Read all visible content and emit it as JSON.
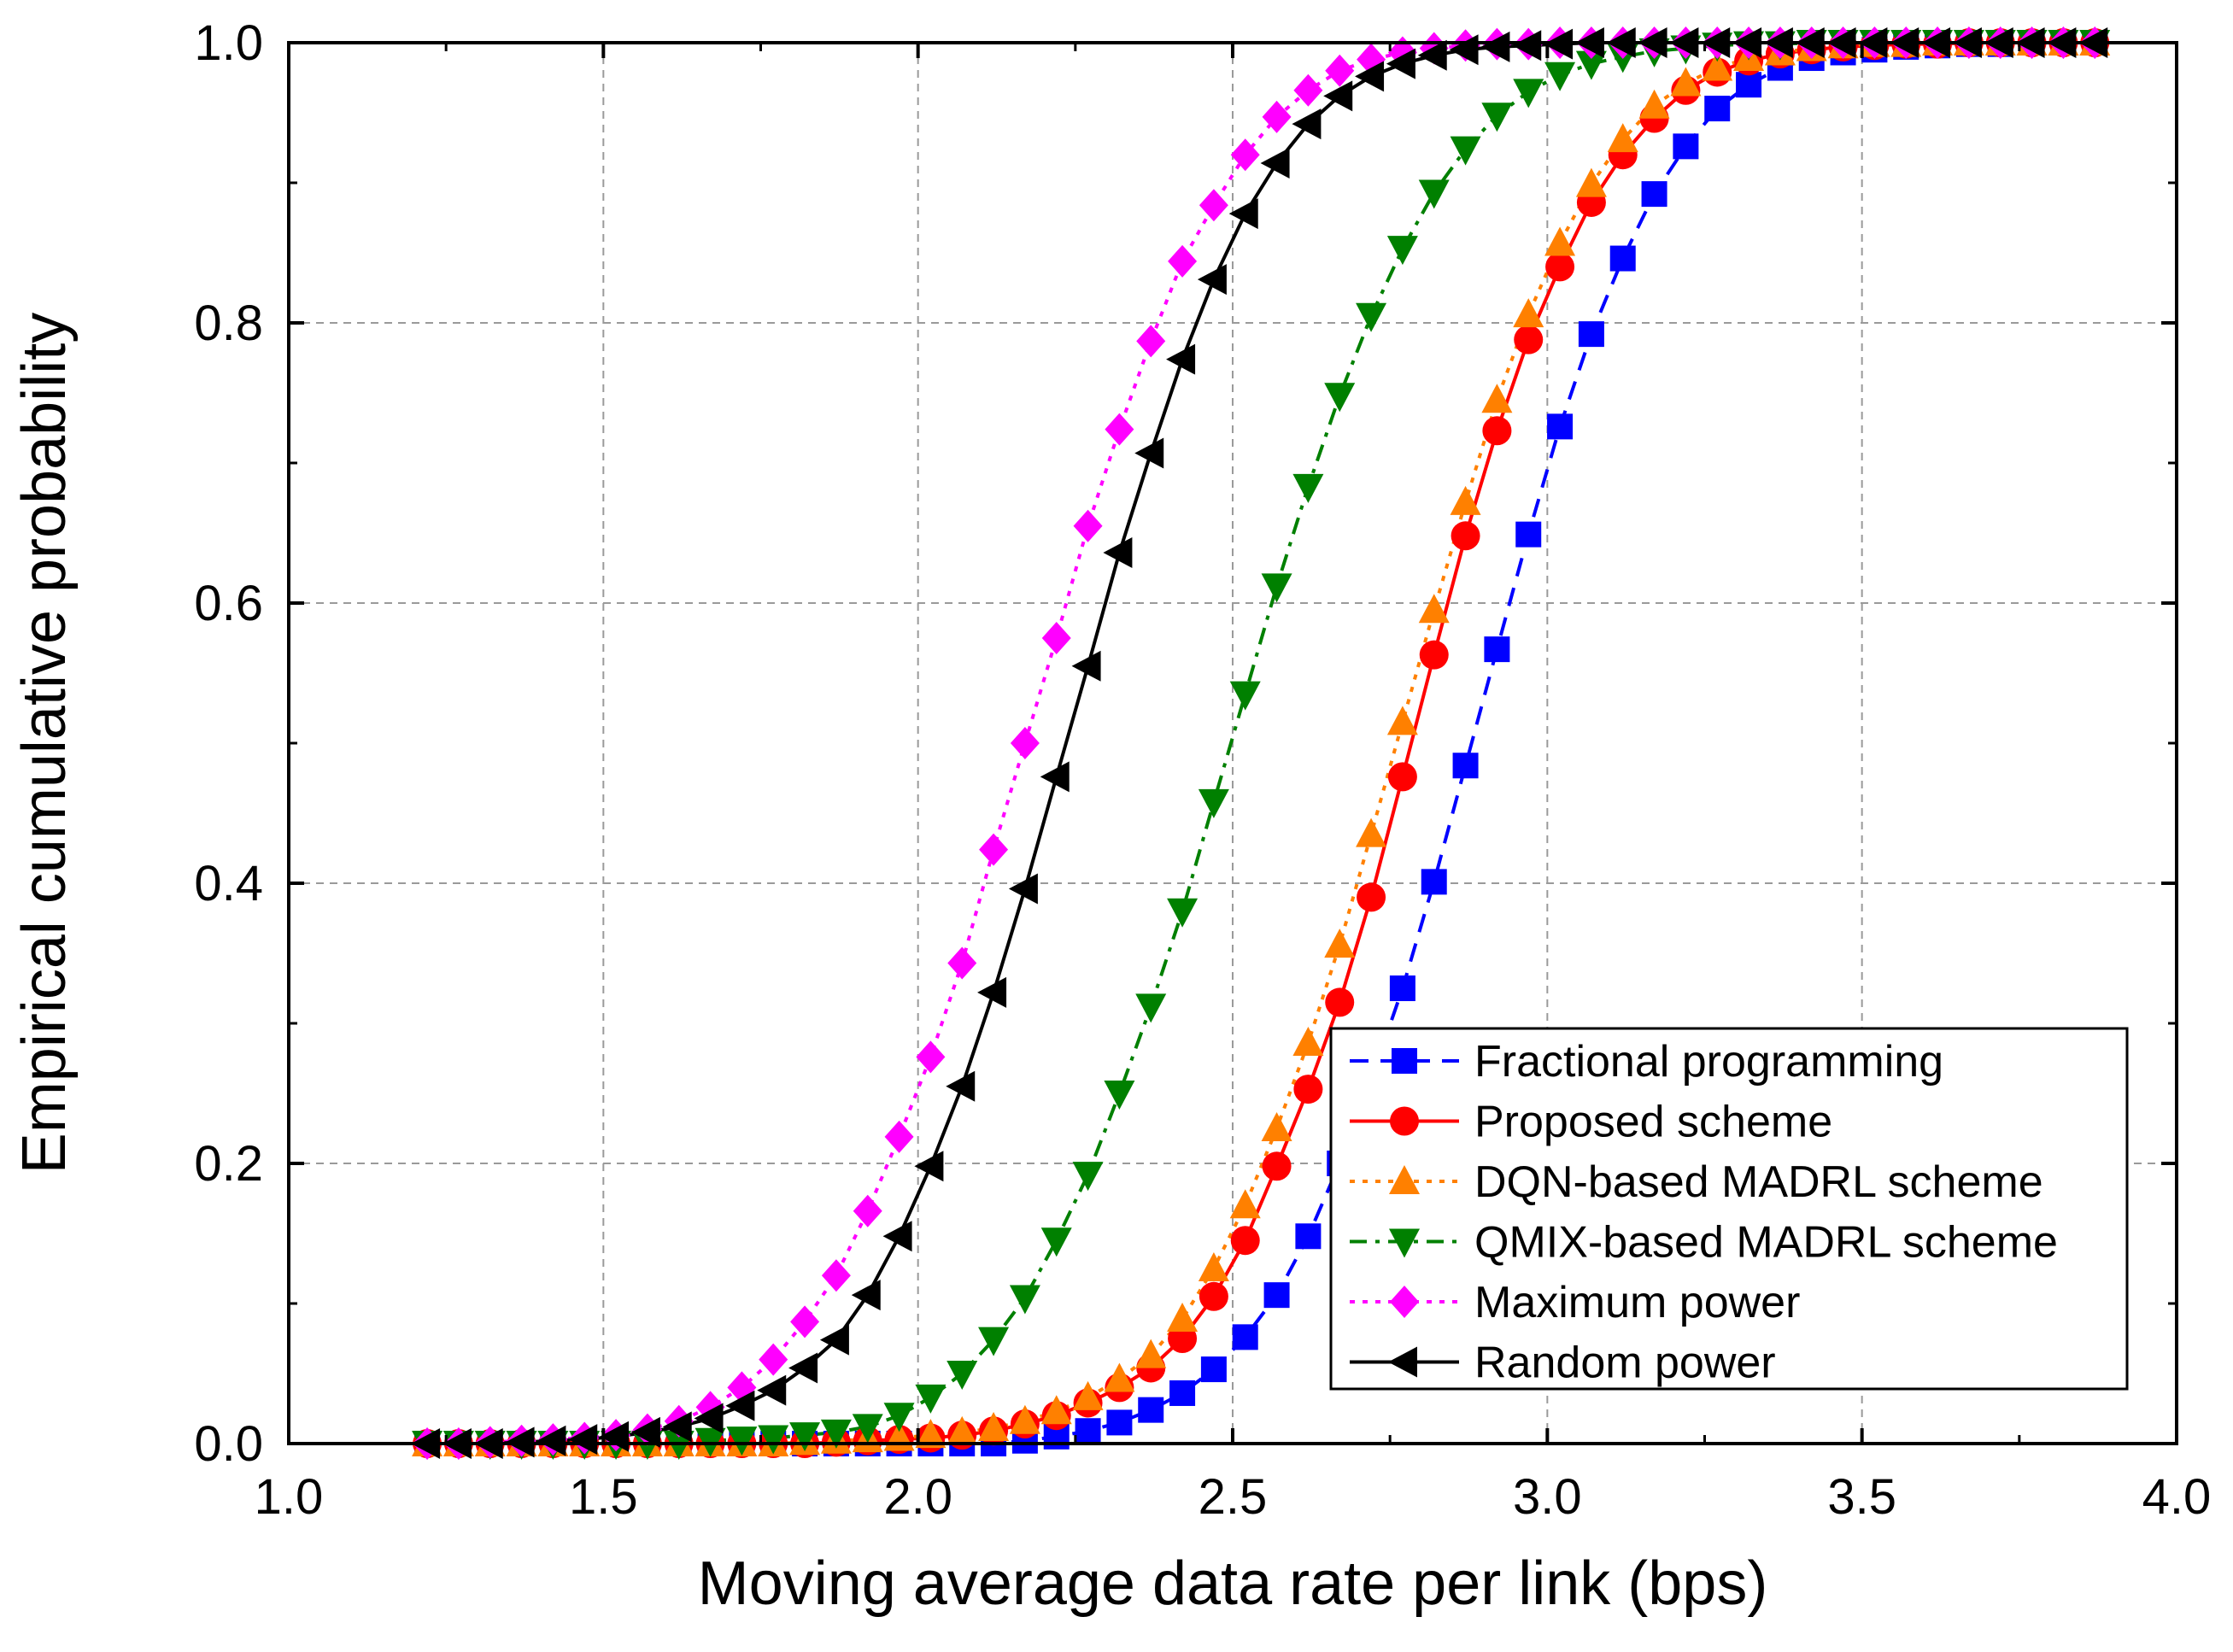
{
  "chart_data": {
    "type": "line",
    "title": "",
    "xlabel": "Moving average data rate per link (bps)",
    "ylabel": "Empirical cumulative probability",
    "xlim": [
      1.0,
      4.0
    ],
    "ylim": [
      0.0,
      1.0
    ],
    "xticks": [
      "1.0",
      "1.5",
      "2.0",
      "2.5",
      "3.0",
      "3.5",
      "4.0"
    ],
    "yticks": [
      "0.0",
      "0.2",
      "0.4",
      "0.6",
      "0.8",
      "1.0"
    ],
    "grid": true,
    "legend_position": "bottom-right",
    "series": [
      {
        "name": "Fractional programming",
        "color": "#0000ff",
        "line_style": "dashed",
        "marker": "square",
        "x": [
          1.22,
          1.27,
          1.32,
          1.37,
          1.42,
          1.47,
          1.52,
          1.57,
          1.62,
          1.67,
          1.72,
          1.77,
          1.82,
          1.87,
          1.92,
          1.97,
          2.02,
          2.07,
          2.12,
          2.17,
          2.22,
          2.27,
          2.32,
          2.37,
          2.42,
          2.47,
          2.52,
          2.57,
          2.62,
          2.67,
          2.72,
          2.77,
          2.82,
          2.87,
          2.92,
          2.97,
          3.02,
          3.07,
          3.12,
          3.17,
          3.22,
          3.27,
          3.32,
          3.37,
          3.42,
          3.47,
          3.52,
          3.57,
          3.62,
          3.67,
          3.72,
          3.77,
          3.82,
          3.87
        ],
        "y": [
          0.0,
          0.0,
          0.0,
          0.0,
          0.0,
          0.0,
          0.0,
          0.0,
          0.0,
          0.0,
          0.0,
          0.0,
          0.0,
          0.0,
          0.0,
          0.0,
          0.0,
          0.0,
          0.0,
          0.002,
          0.005,
          0.009,
          0.015,
          0.024,
          0.036,
          0.053,
          0.076,
          0.106,
          0.148,
          0.2,
          0.26,
          0.325,
          0.401,
          0.484,
          0.567,
          0.649,
          0.726,
          0.792,
          0.846,
          0.892,
          0.926,
          0.953,
          0.97,
          0.982,
          0.989,
          0.993,
          0.995,
          0.997,
          0.998,
          0.999,
          0.999,
          1.0,
          1.0,
          1.0
        ]
      },
      {
        "name": "Proposed scheme",
        "color": "#ff0000",
        "line_style": "solid",
        "marker": "circle",
        "x": [
          1.22,
          1.27,
          1.32,
          1.37,
          1.42,
          1.47,
          1.52,
          1.57,
          1.62,
          1.67,
          1.72,
          1.77,
          1.82,
          1.87,
          1.92,
          1.97,
          2.02,
          2.07,
          2.12,
          2.17,
          2.22,
          2.27,
          2.32,
          2.37,
          2.42,
          2.47,
          2.52,
          2.57,
          2.62,
          2.67,
          2.72,
          2.77,
          2.82,
          2.87,
          2.92,
          2.97,
          3.02,
          3.07,
          3.12,
          3.17,
          3.22,
          3.27,
          3.32,
          3.37,
          3.42,
          3.47,
          3.52,
          3.57,
          3.62,
          3.67,
          3.72,
          3.77,
          3.82,
          3.87
        ],
        "y": [
          0.0,
          0.0,
          0.0,
          0.0,
          0.0,
          0.0,
          0.0,
          0.0,
          0.0,
          0.0,
          0.0,
          0.0,
          0.0,
          0.001,
          0.002,
          0.003,
          0.004,
          0.006,
          0.009,
          0.014,
          0.02,
          0.029,
          0.04,
          0.054,
          0.075,
          0.105,
          0.145,
          0.198,
          0.253,
          0.315,
          0.39,
          0.476,
          0.563,
          0.648,
          0.723,
          0.788,
          0.84,
          0.886,
          0.92,
          0.946,
          0.966,
          0.979,
          0.987,
          0.992,
          0.995,
          0.997,
          0.998,
          0.999,
          0.999,
          1.0,
          1.0,
          1.0,
          1.0,
          1.0
        ]
      },
      {
        "name": "DQN-based MADRL scheme",
        "color": "#ff8000",
        "line_style": "dotted",
        "marker": "triangle-up",
        "x": [
          1.22,
          1.27,
          1.32,
          1.37,
          1.42,
          1.47,
          1.52,
          1.57,
          1.62,
          1.67,
          1.72,
          1.77,
          1.82,
          1.87,
          1.92,
          1.97,
          2.02,
          2.07,
          2.12,
          2.17,
          2.22,
          2.27,
          2.32,
          2.37,
          2.42,
          2.47,
          2.52,
          2.57,
          2.62,
          2.67,
          2.72,
          2.77,
          2.82,
          2.87,
          2.92,
          2.97,
          3.02,
          3.07,
          3.12,
          3.17,
          3.22,
          3.27,
          3.32,
          3.37,
          3.42,
          3.47,
          3.52,
          3.57,
          3.62,
          3.67,
          3.72,
          3.77,
          3.82,
          3.87
        ],
        "y": [
          0.0,
          0.0,
          0.0,
          0.0,
          0.0,
          0.0,
          0.0,
          0.0,
          0.0,
          0.0,
          0.0,
          0.0,
          0.001,
          0.002,
          0.003,
          0.004,
          0.006,
          0.008,
          0.011,
          0.016,
          0.023,
          0.033,
          0.046,
          0.063,
          0.089,
          0.125,
          0.17,
          0.225,
          0.286,
          0.356,
          0.435,
          0.515,
          0.595,
          0.672,
          0.745,
          0.806,
          0.857,
          0.899,
          0.931,
          0.955,
          0.971,
          0.982,
          0.989,
          0.993,
          0.996,
          0.998,
          0.999,
          0.999,
          1.0,
          1.0,
          1.0,
          1.0,
          1.0,
          1.0
        ]
      },
      {
        "name": "QMIX-based MADRL scheme",
        "color": "#008000",
        "line_style": "dash-dot",
        "marker": "triangle-down",
        "x": [
          1.22,
          1.27,
          1.32,
          1.37,
          1.42,
          1.47,
          1.52,
          1.57,
          1.62,
          1.67,
          1.72,
          1.77,
          1.82,
          1.87,
          1.92,
          1.97,
          2.02,
          2.07,
          2.12,
          2.17,
          2.22,
          2.27,
          2.32,
          2.37,
          2.42,
          2.47,
          2.52,
          2.57,
          2.62,
          2.67,
          2.72,
          2.77,
          2.82,
          2.87,
          2.92,
          2.97,
          3.02,
          3.07,
          3.12,
          3.17,
          3.22,
          3.27,
          3.32,
          3.37,
          3.42,
          3.47,
          3.52,
          3.57,
          3.62,
          3.67,
          3.72,
          3.77,
          3.82,
          3.87
        ],
        "y": [
          0.0,
          0.0,
          0.0,
          0.0,
          0.0,
          0.0,
          0.0,
          0.0,
          0.0,
          0.002,
          0.003,
          0.004,
          0.006,
          0.008,
          0.012,
          0.02,
          0.033,
          0.05,
          0.074,
          0.104,
          0.145,
          0.192,
          0.25,
          0.312,
          0.38,
          0.458,
          0.535,
          0.612,
          0.683,
          0.748,
          0.805,
          0.853,
          0.893,
          0.924,
          0.948,
          0.965,
          0.977,
          0.985,
          0.99,
          0.994,
          0.996,
          0.998,
          0.999,
          0.999,
          1.0,
          1.0,
          1.0,
          1.0,
          1.0,
          1.0,
          1.0,
          1.0,
          1.0,
          1.0
        ]
      },
      {
        "name": "Maximum power",
        "color": "#ff00ff",
        "line_style": "dotted",
        "marker": "diamond",
        "x": [
          1.22,
          1.27,
          1.32,
          1.37,
          1.42,
          1.47,
          1.52,
          1.57,
          1.62,
          1.67,
          1.72,
          1.77,
          1.82,
          1.87,
          1.92,
          1.97,
          2.02,
          2.07,
          2.12,
          2.17,
          2.22,
          2.27,
          2.32,
          2.37,
          2.42,
          2.47,
          2.52,
          2.57,
          2.62,
          2.67,
          2.72,
          2.77,
          2.82,
          2.87,
          2.92,
          2.97,
          3.02,
          3.07,
          3.12,
          3.17,
          3.22,
          3.27,
          3.32,
          3.37,
          3.42,
          3.47,
          3.52,
          3.57,
          3.62,
          3.67,
          3.72,
          3.77,
          3.82,
          3.87
        ],
        "y": [
          0.0,
          0.0,
          0.001,
          0.002,
          0.003,
          0.004,
          0.006,
          0.01,
          0.016,
          0.026,
          0.04,
          0.06,
          0.087,
          0.12,
          0.166,
          0.219,
          0.276,
          0.343,
          0.424,
          0.5,
          0.575,
          0.655,
          0.724,
          0.787,
          0.844,
          0.884,
          0.92,
          0.947,
          0.966,
          0.98,
          0.988,
          0.993,
          0.996,
          0.998,
          0.999,
          0.999,
          1.0,
          1.0,
          1.0,
          1.0,
          1.0,
          1.0,
          1.0,
          1.0,
          1.0,
          1.0,
          1.0,
          1.0,
          1.0,
          1.0,
          1.0,
          1.0,
          1.0,
          1.0
        ]
      },
      {
        "name": "Random power",
        "color": "#000000",
        "line_style": "solid",
        "marker": "triangle-left",
        "x": [
          1.22,
          1.27,
          1.32,
          1.37,
          1.42,
          1.47,
          1.52,
          1.57,
          1.62,
          1.67,
          1.72,
          1.77,
          1.82,
          1.87,
          1.92,
          1.97,
          2.02,
          2.07,
          2.12,
          2.17,
          2.22,
          2.27,
          2.32,
          2.37,
          2.42,
          2.47,
          2.52,
          2.57,
          2.62,
          2.67,
          2.72,
          2.77,
          2.82,
          2.87,
          2.92,
          2.97,
          3.02,
          3.07,
          3.12,
          3.17,
          3.22,
          3.27,
          3.32,
          3.37,
          3.42,
          3.47,
          3.52,
          3.57,
          3.62,
          3.67,
          3.72,
          3.77,
          3.82,
          3.87
        ],
        "y": [
          0.0,
          0.0,
          0.0,
          0.001,
          0.002,
          0.003,
          0.005,
          0.008,
          0.012,
          0.018,
          0.027,
          0.038,
          0.054,
          0.074,
          0.106,
          0.148,
          0.198,
          0.255,
          0.322,
          0.396,
          0.476,
          0.555,
          0.636,
          0.707,
          0.774,
          0.831,
          0.878,
          0.914,
          0.942,
          0.962,
          0.976,
          0.985,
          0.991,
          0.995,
          0.997,
          0.998,
          0.999,
          1.0,
          1.0,
          1.0,
          1.0,
          1.0,
          1.0,
          1.0,
          1.0,
          1.0,
          1.0,
          1.0,
          1.0,
          1.0,
          1.0,
          1.0,
          1.0,
          1.0
        ]
      }
    ]
  }
}
